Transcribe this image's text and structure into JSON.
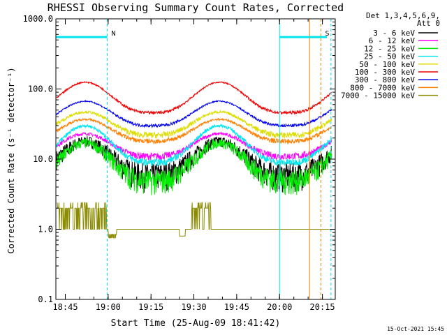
{
  "chart_data": {
    "type": "line",
    "title": "RHESSI Observing Summary Count Rates, Corrected",
    "xlabel": "Start Time (25-Aug-09 18:41:42)",
    "ylabel": "Corrected Count Rate (s⁻¹ detector⁻¹)",
    "y_scale": "log",
    "ylim": [
      0.1,
      1000
    ],
    "xlim": [
      "18:41:42",
      "20:19:30"
    ],
    "x_ticks": [
      "18:45",
      "19:00",
      "19:15",
      "19:30",
      "19:45",
      "20:00",
      "20:15"
    ],
    "y_ticks": [
      "0.1",
      "1.0",
      "10.0",
      "100.0",
      "1000.0"
    ],
    "legend_header": [
      "Det 1,3,4,5,6,9,",
      "Att 0"
    ],
    "legend_position": "right",
    "footer": "15-Oct-2021 15:45",
    "flags": [
      {
        "label": "N",
        "color": "#00e5ee",
        "start": "18:41:42",
        "end": "18:59:40"
      },
      {
        "label": "S",
        "color": "#ff7f00",
        "start": "20:10:30",
        "end": "20:14:30"
      }
    ],
    "series": [
      {
        "name": "3 - 6 keV",
        "color": "#000000",
        "min": 6,
        "max": 18,
        "noise": 0.45
      },
      {
        "name": "6 - 12 keV",
        "color": "#ff00ff",
        "min": 11,
        "max": 23,
        "noise": 0.12
      },
      {
        "name": "12 - 25 keV",
        "color": "#00ee00",
        "min": 5,
        "max": 17,
        "noise": 0.4
      },
      {
        "name": "25 - 50 keV",
        "color": "#00e5ee",
        "min": 9,
        "max": 30,
        "noise": 0.12
      },
      {
        "name": "50 - 100 keV",
        "color": "#dddd00",
        "min": 22,
        "max": 47,
        "noise": 0.1
      },
      {
        "name": "100 - 300 keV",
        "color": "#ee0000",
        "min": 46,
        "max": 125,
        "noise": 0.05
      },
      {
        "name": "300 - 800 keV",
        "color": "#0000ee",
        "min": 30,
        "max": 67,
        "noise": 0.05
      },
      {
        "name": "800 - 7000 keV",
        "color": "#ff7f00",
        "min": 18,
        "max": 37,
        "noise": 0.08
      },
      {
        "name": "7000 - 15000 keV",
        "color": "#8b8b00",
        "min": 1.0,
        "max": 2.0,
        "noise": 0.0
      }
    ]
  }
}
